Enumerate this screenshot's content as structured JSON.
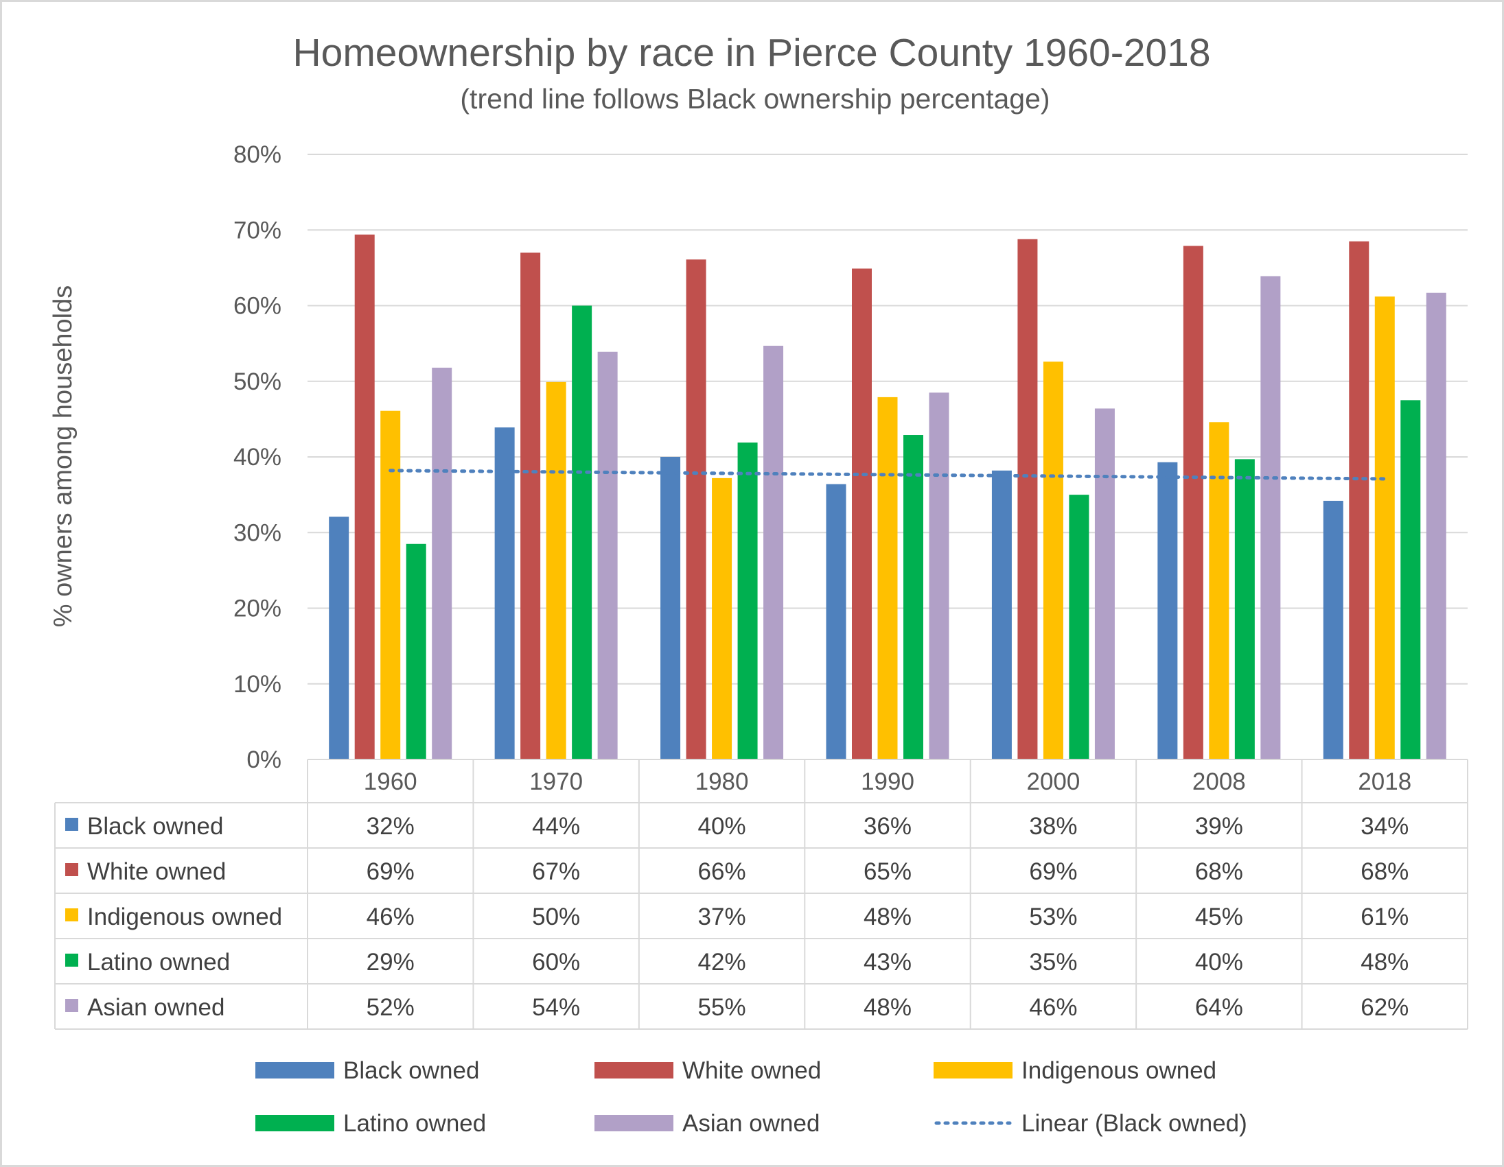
{
  "chart_data": {
    "type": "bar",
    "title": "Homeownership by race in Pierce County 1960-2018",
    "subtitle": "(trend line follows Black ownership percentage)",
    "ylabel": "% owners among households",
    "xlabel": "",
    "ylim": [
      0,
      80
    ],
    "yticks": [
      0,
      10,
      20,
      30,
      40,
      50,
      60,
      70,
      80
    ],
    "y_tick_labels": [
      "0%",
      "10%",
      "20%",
      "30%",
      "40%",
      "50%",
      "60%",
      "70%",
      "80%"
    ],
    "grid": true,
    "categories": [
      "1960",
      "1970",
      "1980",
      "1990",
      "2000",
      "2008",
      "2018"
    ],
    "series": [
      {
        "name": "Black owned",
        "color": "#4f81bd",
        "values": [
          32.1,
          43.9,
          40.0,
          36.4,
          38.2,
          39.3,
          34.2
        ],
        "labels": [
          "32%",
          "44%",
          "40%",
          "36%",
          "38%",
          "39%",
          "34%"
        ]
      },
      {
        "name": "White owned",
        "color": "#c0504d",
        "values": [
          69.4,
          67.0,
          66.1,
          64.9,
          68.8,
          67.9,
          68.5
        ],
        "labels": [
          "69%",
          "67%",
          "66%",
          "65%",
          "69%",
          "68%",
          "68%"
        ]
      },
      {
        "name": "Indigenous owned",
        "color": "#ffc000",
        "values": [
          46.1,
          49.9,
          37.2,
          47.9,
          52.6,
          44.6,
          61.2
        ],
        "labels": [
          "46%",
          "50%",
          "37%",
          "48%",
          "53%",
          "45%",
          "61%"
        ]
      },
      {
        "name": "Latino owned",
        "color": "#00b050",
        "values": [
          28.5,
          60.0,
          41.9,
          42.9,
          35.0,
          39.7,
          47.5
        ],
        "labels": [
          "29%",
          "60%",
          "42%",
          "43%",
          "35%",
          "40%",
          "48%"
        ]
      },
      {
        "name": "Asian owned",
        "color": "#b1a0c7",
        "values": [
          51.8,
          53.9,
          54.7,
          48.5,
          46.4,
          63.9,
          61.7
        ],
        "labels": [
          "52%",
          "54%",
          "55%",
          "48%",
          "46%",
          "64%",
          "62%"
        ]
      }
    ],
    "trendline": {
      "name": "Linear (Black owned)",
      "series": "Black owned",
      "color": "#4f81bd",
      "style": "dotted",
      "start": 38.2,
      "end": 37.1
    },
    "data_table": true,
    "legend_position": "bottom"
  }
}
